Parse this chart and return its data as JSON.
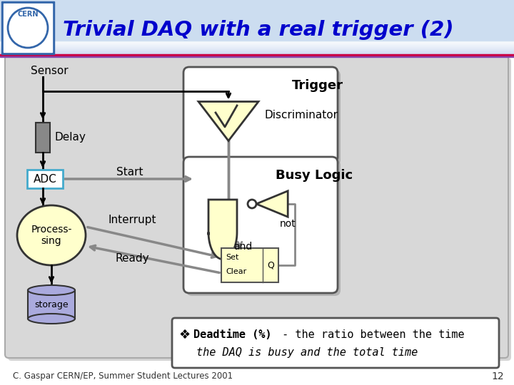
{
  "title": "Trivial DAQ with a real trigger (2)",
  "title_color": "#0000CC",
  "bg_color": "#FFFFFF",
  "slide_bg": "#D8D8D8",
  "footer_text": "C. Gaspar CERN/EP, Summer Student Lectures 2001",
  "footer_page": "12",
  "trigger_box_label": "Trigger",
  "discriminator_label": "Discriminator",
  "discriminator_color": "#FFFFCC",
  "busy_box_label": "Busy Logic",
  "and_gate_color": "#FFFFCC",
  "and_label": "and",
  "not_label": "not",
  "sensor_label": "Sensor",
  "delay_label": "Delay",
  "delay_color": "#888888",
  "adc_label": "ADC",
  "adc_color": "#FFFFFF",
  "adc_border": "#44AACC",
  "start_label": "Start",
  "processing_label": "Process-\nsing",
  "processing_color": "#FFFFCC",
  "interrupt_label": "Interrupt",
  "ready_label": "Ready",
  "storage_label": "storage",
  "storage_color": "#AAAADD",
  "set_label": "Set",
  "clear_label": "Clear",
  "q_label": "Q",
  "deadtime_bold": "Deadtime (%)",
  "deadtime_text1": " - the ratio between the time",
  "deadtime_text2": "the DAQ is busy and the total time",
  "note_box_color": "#FFFFFF",
  "header_bg": "#CCDDF0"
}
